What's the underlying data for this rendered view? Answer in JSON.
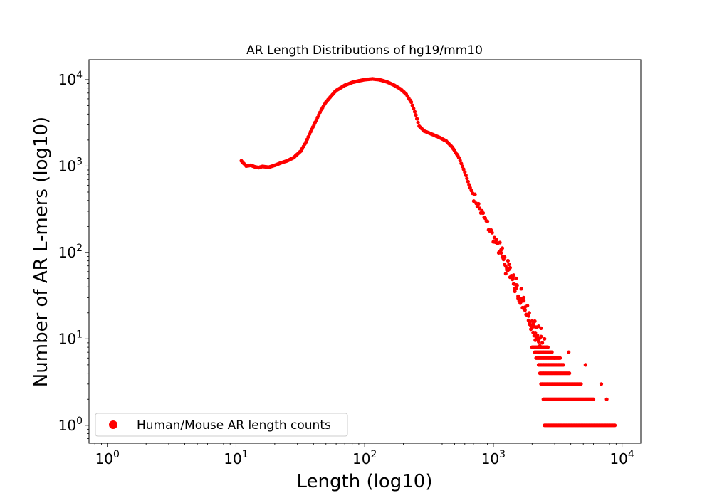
{
  "chart_data": {
    "type": "scatter",
    "title": "AR Length Distributions of hg19/mm10",
    "xlabel": "Length (log10)",
    "ylabel": "Number of AR L-mers (log10)",
    "xscale": "log",
    "yscale": "log",
    "xlim": [
      0.72,
      14000
    ],
    "ylim": [
      0.62,
      17000
    ],
    "grid": false,
    "legend_position": "lower-left",
    "marker_color": "#ff0000",
    "x_ticks": [
      {
        "value": 1,
        "base": "10",
        "exp": "0"
      },
      {
        "value": 10,
        "base": "10",
        "exp": "1"
      },
      {
        "value": 100,
        "base": "10",
        "exp": "2"
      },
      {
        "value": 1000,
        "base": "10",
        "exp": "3"
      },
      {
        "value": 10000,
        "base": "10",
        "exp": "4"
      }
    ],
    "y_ticks": [
      {
        "value": 1,
        "base": "10",
        "exp": "0"
      },
      {
        "value": 10,
        "base": "10",
        "exp": "1"
      },
      {
        "value": 100,
        "base": "10",
        "exp": "2"
      },
      {
        "value": 1000,
        "base": "10",
        "exp": "3"
      },
      {
        "value": 10000,
        "base": "10",
        "exp": "4"
      }
    ],
    "series": [
      {
        "name": "Human/Mouse AR length counts",
        "color": "#ff0000",
        "curve": [
          [
            11,
            1150
          ],
          [
            12,
            1000
          ],
          [
            13,
            1020
          ],
          [
            14,
            980
          ],
          [
            15,
            960
          ],
          [
            16,
            990
          ],
          [
            18,
            970
          ],
          [
            20,
            1020
          ],
          [
            22,
            1080
          ],
          [
            25,
            1150
          ],
          [
            28,
            1250
          ],
          [
            32,
            1500
          ],
          [
            35,
            1900
          ],
          [
            38,
            2500
          ],
          [
            42,
            3400
          ],
          [
            46,
            4500
          ],
          [
            50,
            5500
          ],
          [
            55,
            6500
          ],
          [
            60,
            7500
          ],
          [
            70,
            8600
          ],
          [
            80,
            9300
          ],
          [
            90,
            9700
          ],
          [
            100,
            10000
          ],
          [
            115,
            10200
          ],
          [
            130,
            10000
          ],
          [
            150,
            9400
          ],
          [
            170,
            8600
          ],
          [
            190,
            7800
          ],
          [
            210,
            6800
          ],
          [
            230,
            5500
          ],
          [
            250,
            3900
          ],
          [
            265,
            2900
          ],
          [
            290,
            2550
          ],
          [
            330,
            2350
          ],
          [
            380,
            2150
          ],
          [
            430,
            1950
          ],
          [
            480,
            1650
          ],
          [
            540,
            1250
          ],
          [
            600,
            850
          ],
          [
            660,
            560
          ],
          [
            720,
            420
          ],
          [
            800,
            300
          ],
          [
            900,
            210
          ],
          [
            1000,
            150
          ],
          [
            1100,
            110
          ],
          [
            1200,
            80
          ],
          [
            1350,
            60
          ],
          [
            1500,
            40
          ],
          [
            1650,
            27
          ],
          [
            1800,
            19
          ],
          [
            2000,
            14
          ],
          [
            2200,
            11
          ],
          [
            2400,
            9
          ]
        ],
        "tail_points": [
          [
            1500,
            50
          ],
          [
            1650,
            38
          ],
          [
            1720,
            30
          ],
          [
            1900,
            20
          ],
          [
            2100,
            16
          ],
          [
            2250,
            14
          ],
          [
            2500,
            10
          ],
          [
            2600,
            8
          ],
          [
            2800,
            7
          ],
          [
            3000,
            6
          ]
        ],
        "rows": [
          {
            "y": 8,
            "x_min": 2000,
            "x_max": 2650
          },
          {
            "y": 7,
            "x_min": 2100,
            "x_max": 2850
          },
          {
            "y": 6,
            "x_min": 2150,
            "x_max": 3300
          },
          {
            "y": 5,
            "x_min": 2250,
            "x_max": 3500
          },
          {
            "y": 4,
            "x_min": 2300,
            "x_max": 3900
          },
          {
            "y": 3,
            "x_min": 2350,
            "x_max": 4800
          },
          {
            "y": 2,
            "x_min": 2450,
            "x_max": 6000
          },
          {
            "y": 1,
            "x_min": 2500,
            "x_max": 8800
          }
        ],
        "isolated_points": [
          [
            3850,
            7
          ],
          [
            5200,
            5
          ],
          [
            6900,
            3
          ],
          [
            7600,
            2
          ]
        ]
      }
    ]
  }
}
